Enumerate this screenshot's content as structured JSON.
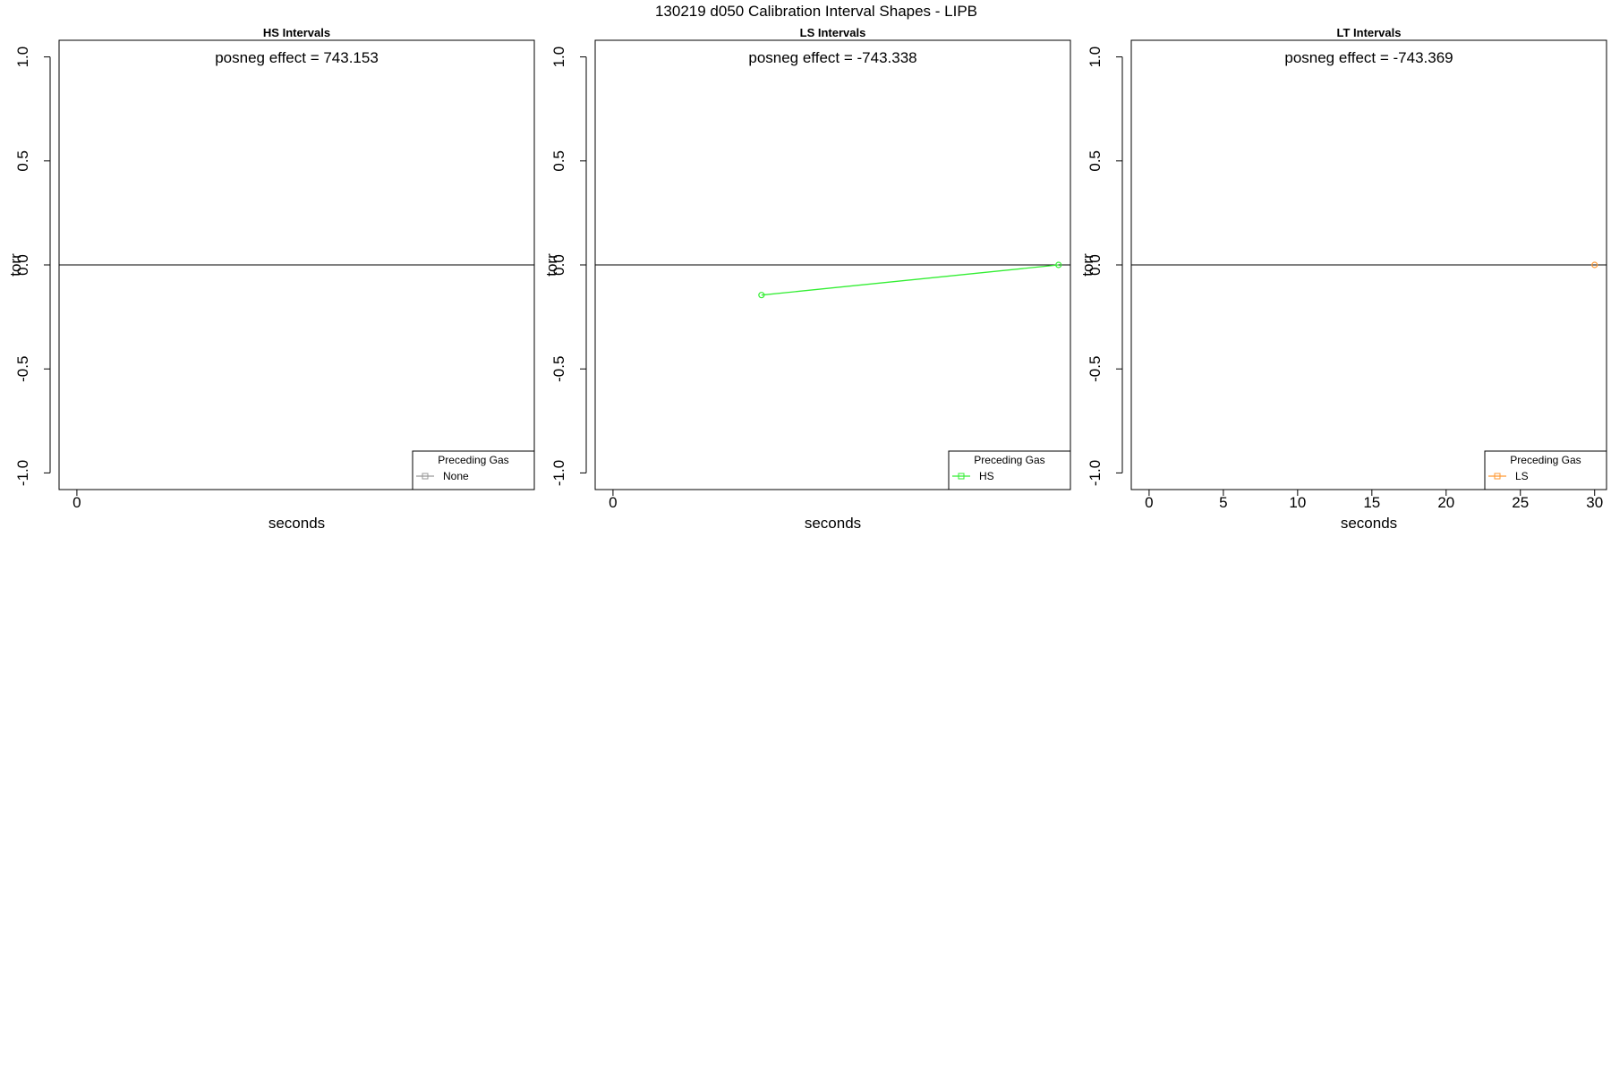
{
  "figure": {
    "title": "130219   d050   Calibration Interval Shapes - LIPB"
  },
  "chart_data": [
    {
      "type": "line",
      "title": "HS Intervals",
      "annotation": "posneg effect = 743.153",
      "xlabel": "seconds",
      "ylabel": "torr",
      "xlim": [
        -1.2,
        30.8
      ],
      "ylim": [
        -1.08,
        1.08
      ],
      "xticks": [
        0
      ],
      "xtick_labels": [
        "0"
      ],
      "yticks": [
        -1.0,
        -0.5,
        0.0,
        0.5,
        1.0
      ],
      "ytick_labels": [
        "-1.0",
        "-0.5",
        "0.0",
        "0.5",
        "1.0"
      ],
      "zero_line": true,
      "grid": false,
      "legend": {
        "title": "Preceding Gas",
        "position": "bottom-right",
        "entries": [
          {
            "label": "None",
            "color": "#999999",
            "marker": "square"
          }
        ]
      },
      "series": [
        {
          "name": "None",
          "color": "#999999",
          "x": [],
          "y": []
        }
      ]
    },
    {
      "type": "line",
      "title": "LS Intervals",
      "annotation": "posneg effect = -743.338",
      "xlabel": "seconds",
      "ylabel": "torr",
      "xlim": [
        -1.2,
        30.8
      ],
      "ylim": [
        -1.08,
        1.08
      ],
      "xticks": [
        0
      ],
      "xtick_labels": [
        "0"
      ],
      "yticks": [
        -1.0,
        -0.5,
        0.0,
        0.5,
        1.0
      ],
      "ytick_labels": [
        "-1.0",
        "-0.5",
        "0.0",
        "0.5",
        "1.0"
      ],
      "zero_line": true,
      "grid": false,
      "legend": {
        "title": "Preceding Gas",
        "position": "bottom-right",
        "entries": [
          {
            "label": "HS",
            "color": "#33ee33",
            "marker": "square"
          }
        ]
      },
      "series": [
        {
          "name": "HS",
          "color": "#33ee33",
          "marker": "circle",
          "x": [
            10,
            30
          ],
          "y": [
            -0.145,
            0.0
          ]
        }
      ]
    },
    {
      "type": "line",
      "title": "LT Intervals",
      "annotation": "posneg effect = -743.369",
      "xlabel": "seconds",
      "ylabel": "torr",
      "xlim": [
        -1.2,
        30.8
      ],
      "ylim": [
        -1.08,
        1.08
      ],
      "xticks": [
        0,
        5,
        10,
        15,
        20,
        25,
        30
      ],
      "xtick_labels": [
        "0",
        "5",
        "10",
        "15",
        "20",
        "25",
        "30"
      ],
      "yticks": [
        -1.0,
        -0.5,
        0.0,
        0.5,
        1.0
      ],
      "ytick_labels": [
        "-1.0",
        "-0.5",
        "0.0",
        "0.5",
        "1.0"
      ],
      "zero_line": true,
      "grid": false,
      "legend": {
        "title": "Preceding Gas",
        "position": "bottom-right",
        "entries": [
          {
            "label": "LS",
            "color": "#ff9933",
            "marker": "square"
          }
        ]
      },
      "series": [
        {
          "name": "LS",
          "color": "#ff9933",
          "marker": "circle",
          "x": [
            30
          ],
          "y": [
            0.0
          ]
        }
      ]
    }
  ]
}
